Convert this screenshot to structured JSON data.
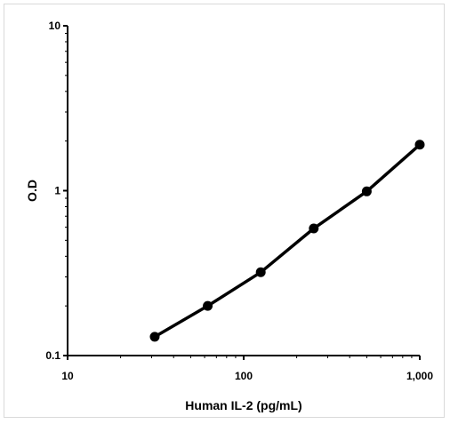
{
  "chart_data": {
    "type": "line",
    "title": "",
    "xlabel": "Human IL-2 (pg/mL)",
    "ylabel": "O.D",
    "x_scale": "log",
    "y_scale": "log",
    "xlim": [
      10,
      1000
    ],
    "ylim": [
      0.1,
      10
    ],
    "x_ticks": [
      10,
      100,
      1000
    ],
    "x_tick_labels": [
      "10",
      "100",
      "1,000"
    ],
    "y_ticks": [
      0.1,
      1,
      10
    ],
    "y_tick_labels": [
      "0.1",
      "1",
      "10"
    ],
    "grid": false,
    "legend": "none",
    "line_color": "#000000",
    "marker": "filled-circle",
    "series": [
      {
        "x": [
          31.25,
          62.5,
          125,
          250,
          500,
          1000
        ],
        "values": [
          0.13,
          0.2,
          0.32,
          0.59,
          0.99,
          1.9
        ]
      }
    ]
  }
}
